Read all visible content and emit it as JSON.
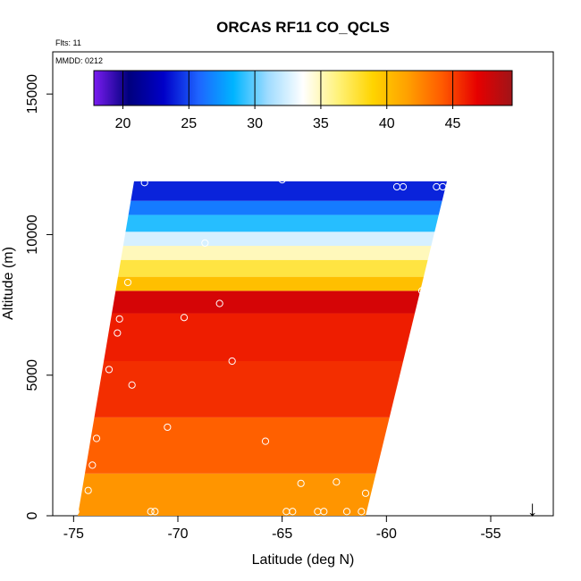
{
  "chart_data": {
    "type": "heatmap",
    "title": "ORCAS RF11 CO_QCLS",
    "annotations": [
      "Flts: 11",
      "MMDD: 0212"
    ],
    "xlabel": "Latitude (deg N)",
    "ylabel": "Altitude (m)",
    "xlim": [
      -76,
      -52
    ],
    "ylim": [
      0,
      16500
    ],
    "x_ticks": [
      -75,
      -70,
      -65,
      -60,
      -55
    ],
    "x_tick_labels": [
      "-75",
      "-70",
      "-65",
      "-60",
      "-55"
    ],
    "y_ticks": [
      0,
      5000,
      10000,
      15000
    ],
    "y_tick_labels": [
      "0",
      "5000",
      "10000",
      "15000"
    ],
    "colorbar": {
      "min": 17.8,
      "max": 49.5,
      "ticks": [
        20,
        25,
        30,
        35,
        40,
        45
      ],
      "tick_labels": [
        "20",
        "25",
        "30",
        "35",
        "40",
        "45"
      ],
      "colors": [
        "#7a1cf0",
        "#00007d",
        "#0000c8",
        "#1e64ff",
        "#00b4ff",
        "#a0dcff",
        "#ffffff",
        "#fff27a",
        "#ffd400",
        "#ffa000",
        "#ff5a00",
        "#e60000",
        "#a01418"
      ]
    },
    "domain_outline": [
      [
        -74.8,
        0
      ],
      [
        -61.0,
        0
      ],
      [
        -57.1,
        11900
      ],
      [
        -72.1,
        11900
      ]
    ],
    "layers": [
      {
        "alt_max": 1500,
        "co": 42.0
      },
      {
        "alt_max": 3500,
        "co": 44.0
      },
      {
        "alt_max": 5500,
        "co": 45.5
      },
      {
        "alt_max": 7200,
        "co": 46.0
      },
      {
        "alt_max": 8000,
        "co": 47.5
      },
      {
        "alt_max": 8500,
        "co": 40.0
      },
      {
        "alt_max": 9100,
        "co": 37.5
      },
      {
        "alt_max": 9600,
        "co": 35.0
      },
      {
        "alt_max": 10100,
        "co": 32.5
      },
      {
        "alt_max": 10700,
        "co": 29.0
      },
      {
        "alt_max": 11200,
        "co": 26.5
      },
      {
        "alt_max": 11900,
        "co": 24.0
      }
    ],
    "observations": [
      {
        "lat": -75.0,
        "alt": 200
      },
      {
        "lat": -74.9,
        "alt": 150
      },
      {
        "lat": -74.6,
        "alt": 2500
      },
      {
        "lat": -74.3,
        "alt": 900
      },
      {
        "lat": -74.1,
        "alt": 1800
      },
      {
        "lat": -73.9,
        "alt": 2750
      },
      {
        "lat": -74.1,
        "alt": 4900
      },
      {
        "lat": -73.7,
        "alt": 7300
      },
      {
        "lat": -73.3,
        "alt": 5200
      },
      {
        "lat": -73.3,
        "alt": 8200
      },
      {
        "lat": -72.9,
        "alt": 6500
      },
      {
        "lat": -72.8,
        "alt": 7000
      },
      {
        "lat": -72.4,
        "alt": 8300
      },
      {
        "lat": -72.2,
        "alt": 4650
      },
      {
        "lat": -71.6,
        "alt": 11850
      },
      {
        "lat": -71.3,
        "alt": 150
      },
      {
        "lat": -71.1,
        "alt": 150
      },
      {
        "lat": -70.5,
        "alt": 3150
      },
      {
        "lat": -69.7,
        "alt": 7050
      },
      {
        "lat": -68.7,
        "alt": 9700
      },
      {
        "lat": -68.0,
        "alt": 7550
      },
      {
        "lat": -67.4,
        "alt": 5500
      },
      {
        "lat": -65.8,
        "alt": 2650
      },
      {
        "lat": -65.0,
        "alt": 11950
      },
      {
        "lat": -64.8,
        "alt": 150
      },
      {
        "lat": -64.5,
        "alt": 150
      },
      {
        "lat": -64.1,
        "alt": 1150
      },
      {
        "lat": -63.3,
        "alt": 150
      },
      {
        "lat": -63.0,
        "alt": 150
      },
      {
        "lat": -62.4,
        "alt": 1200
      },
      {
        "lat": -61.9,
        "alt": 150
      },
      {
        "lat": -61.2,
        "alt": 150
      },
      {
        "lat": -61.0,
        "alt": 800
      },
      {
        "lat": -59.5,
        "alt": 11700
      },
      {
        "lat": -59.2,
        "alt": 11700
      },
      {
        "lat": -58.3,
        "alt": 8000
      },
      {
        "lat": -58.1,
        "alt": 8200
      },
      {
        "lat": -57.6,
        "alt": 11700
      },
      {
        "lat": -57.3,
        "alt": 11700
      }
    ],
    "marker": {
      "symbol": "↓",
      "lat": -53.0
    }
  }
}
